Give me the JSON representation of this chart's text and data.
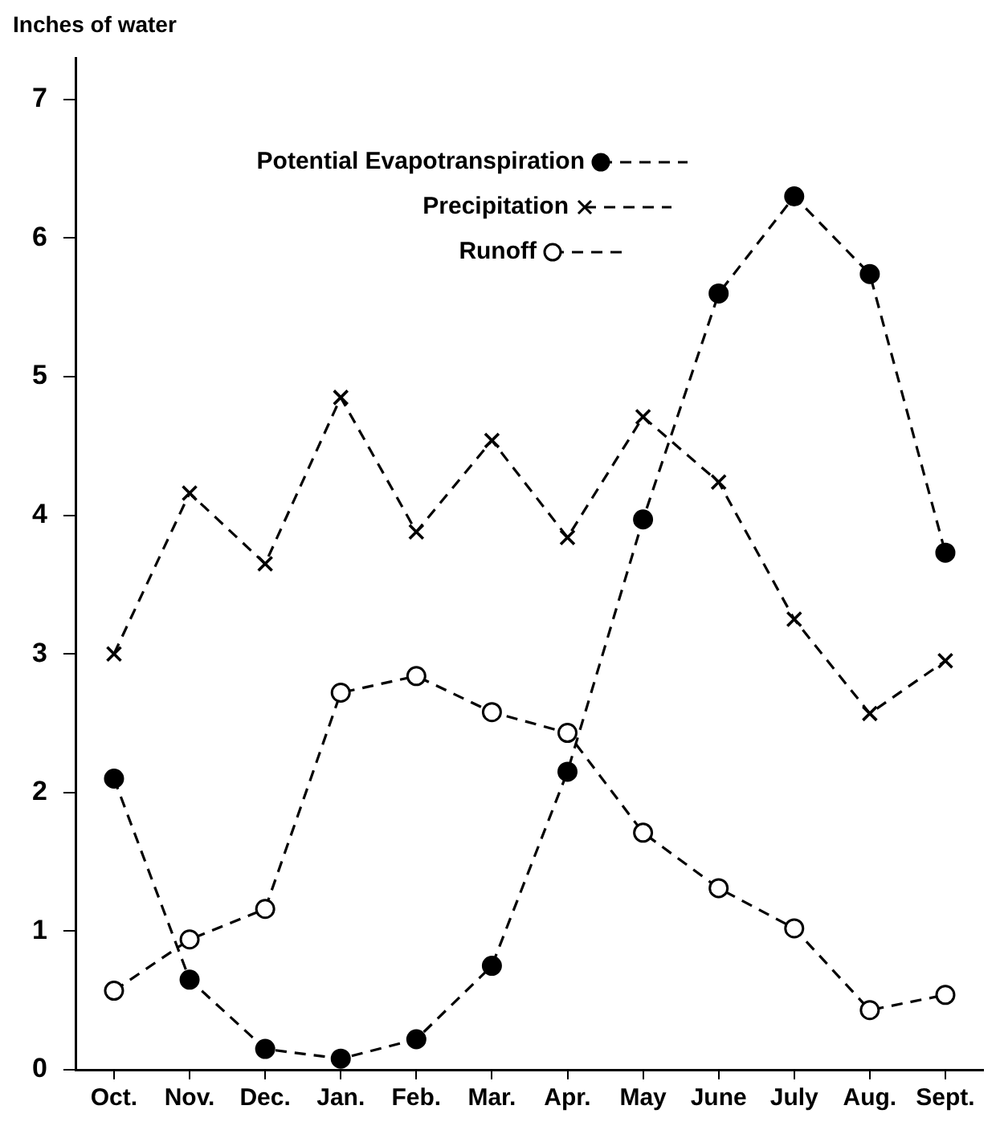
{
  "chart_data": {
    "type": "line",
    "ylabel": "Inches of water",
    "categories": [
      "Oct.",
      "Nov.",
      "Dec.",
      "Jan.",
      "Feb.",
      "Mar.",
      "Apr.",
      "May",
      "June",
      "July",
      "Aug.",
      "Sept."
    ],
    "series": [
      {
        "name": "Potential Evapotranspiration",
        "color": "#000000",
        "marker": "circle",
        "values": [
          2.1,
          0.65,
          0.15,
          0.08,
          0.22,
          0.75,
          2.15,
          3.97,
          5.6,
          6.3,
          5.74,
          3.73
        ]
      },
      {
        "name": "Precipitation",
        "color": "#000000",
        "marker": "cross",
        "values": [
          3.0,
          4.16,
          3.65,
          4.85,
          3.88,
          4.54,
          3.84,
          4.71,
          4.24,
          3.25,
          2.57,
          2.95
        ]
      },
      {
        "name": "Runoff",
        "color": "#000000",
        "marker": "circle",
        "values": [
          0.57,
          0.94,
          1.16,
          2.72,
          2.84,
          2.58,
          2.43,
          1.71,
          1.31,
          1.02,
          0.43,
          0.54
        ]
      }
    ],
    "ylim": [
      0,
      7.3
    ],
    "yticks": [
      0,
      1,
      2,
      3,
      4,
      5,
      6,
      7
    ],
    "grid": false,
    "legend": "top left",
    "line_style": "dashed"
  }
}
